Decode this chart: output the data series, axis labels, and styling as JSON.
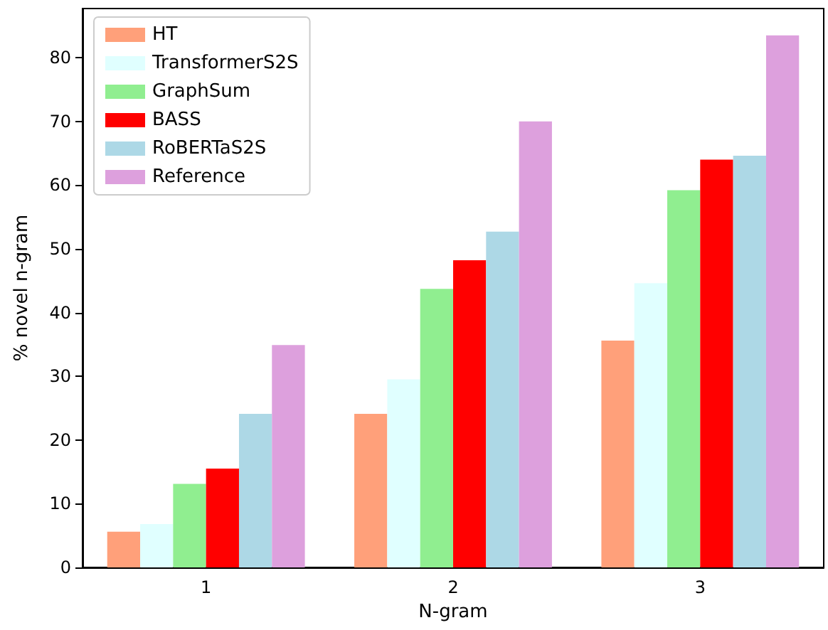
{
  "chart_data": {
    "type": "bar",
    "xlabel": "N-gram",
    "ylabel": "% novel n-gram",
    "categories": [
      "1",
      "2",
      "3"
    ],
    "series": [
      {
        "name": "HT",
        "color": "#ffa07a",
        "values": [
          5.6,
          24.1,
          35.6
        ]
      },
      {
        "name": "TransformerS2S",
        "color": "#e0ffff",
        "values": [
          6.8,
          29.5,
          44.6
        ]
      },
      {
        "name": "GraphSum",
        "color": "#90ee90",
        "values": [
          13.1,
          43.7,
          59.2
        ]
      },
      {
        "name": "BASS",
        "color": "#ff0000",
        "values": [
          15.5,
          48.2,
          64
        ]
      },
      {
        "name": "RoBERTaS2S",
        "color": "#add8e6",
        "values": [
          24.1,
          52.7,
          64.6
        ]
      },
      {
        "name": "Reference",
        "color": "#dda0dd",
        "values": [
          34.9,
          70,
          83.5
        ]
      }
    ],
    "ylim": [
      0,
      87.7
    ],
    "yticks": [
      0,
      10,
      20,
      30,
      40,
      50,
      60,
      70,
      80
    ],
    "grid": false,
    "legend": "top left"
  }
}
